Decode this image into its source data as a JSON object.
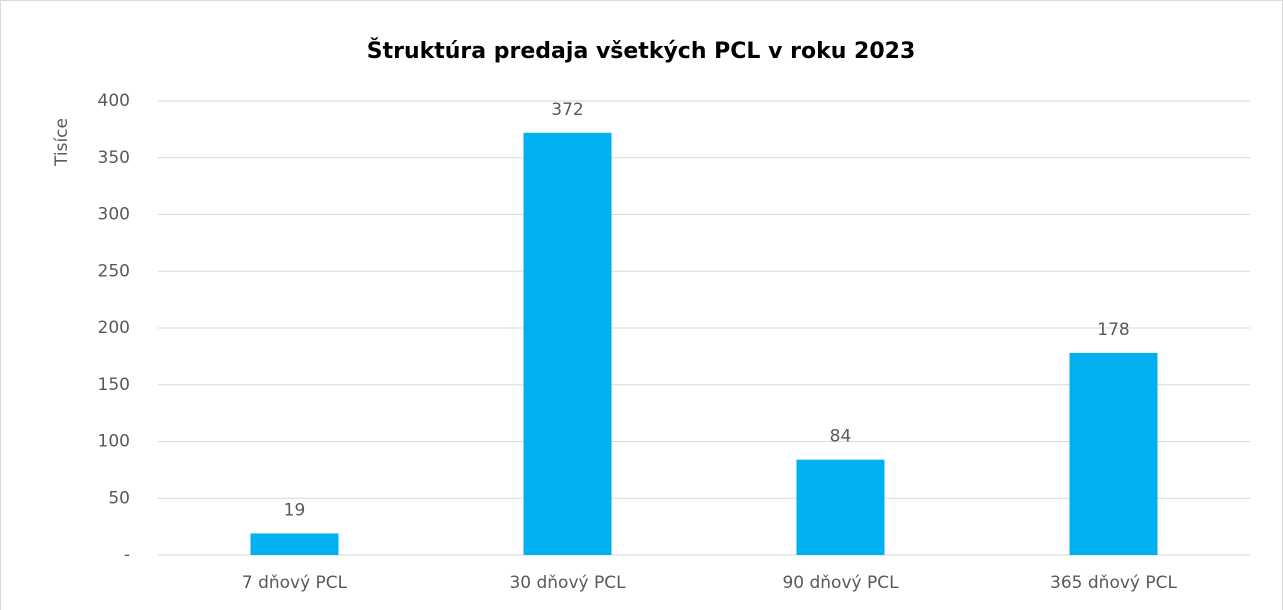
{
  "chart_data": {
    "type": "bar",
    "title": "Štruktúra predaja všetkých PCL v roku 2023",
    "y_label": "Tisíce",
    "categories": [
      "7 dňový PCL",
      "30 dňový PCL",
      "90 dňový PCL",
      "365 dňový PCL"
    ],
    "values": [
      19,
      372,
      84,
      178
    ],
    "color": "#00b0f0",
    "ylim": [
      0,
      400
    ],
    "yticks": [
      {
        "value": 0,
        "label": "-"
      },
      50,
      100,
      150,
      200,
      250,
      300,
      350,
      400
    ],
    "grid": true,
    "data_labels": true
  }
}
